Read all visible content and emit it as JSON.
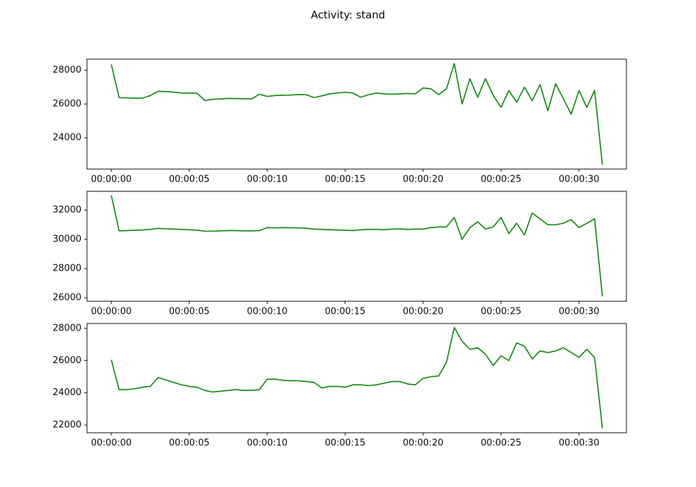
{
  "title": "Activity: stand",
  "chart_data": [
    {
      "type": "line",
      "x": [
        0,
        0.5,
        1,
        1.5,
        2,
        2.5,
        3,
        3.5,
        4,
        4.5,
        5,
        5.5,
        6,
        6.5,
        7,
        7.5,
        8,
        8.5,
        9,
        9.5,
        10,
        10.5,
        11,
        11.5,
        12,
        12.5,
        13,
        13.5,
        14,
        14.5,
        15,
        15.5,
        16,
        16.5,
        17,
        17.5,
        18,
        18.5,
        19,
        19.5,
        20,
        20.5,
        21,
        21.5,
        22,
        22.5,
        23,
        23.5,
        24,
        24.5,
        25,
        25.5,
        26,
        26.5,
        27,
        27.5,
        28,
        28.5,
        29,
        29.5,
        30,
        30.5,
        31,
        31.5
      ],
      "series": [
        {
          "color": "#008000",
          "values": [
            28350,
            26380,
            26360,
            26340,
            26350,
            26500,
            26750,
            26740,
            26700,
            26650,
            26640,
            26640,
            26200,
            26280,
            26300,
            26330,
            26320,
            26310,
            26300,
            26580,
            26450,
            26500,
            26520,
            26530,
            26560,
            26550,
            26380,
            26480,
            26600,
            26650,
            26700,
            26650,
            26400,
            26550,
            26650,
            26600,
            26580,
            26600,
            26620,
            26600,
            26950,
            26900,
            26550,
            26900,
            28400,
            26000,
            27500,
            26400,
            27500,
            26500,
            25800,
            26800,
            26100,
            27000,
            26200,
            27150,
            25600,
            27200,
            26300,
            25400,
            26800,
            25800,
            26800,
            22400
          ]
        }
      ],
      "xlim": [
        -1.56,
        33.04
      ],
      "ylim": [
        22140,
        28660
      ],
      "xticks": [
        {
          "value": 0,
          "label": "00:00:00"
        },
        {
          "value": 5,
          "label": "00:00:05"
        },
        {
          "value": 10,
          "label": "00:00:10"
        },
        {
          "value": 15,
          "label": "00:00:15"
        },
        {
          "value": 20,
          "label": "00:00:20"
        },
        {
          "value": 25,
          "label": "00:00:25"
        },
        {
          "value": 30,
          "label": "00:00:30"
        }
      ],
      "yticks": [
        24000,
        26000,
        28000
      ]
    },
    {
      "type": "line",
      "x": [
        0,
        0.5,
        1,
        1.5,
        2,
        2.5,
        3,
        3.5,
        4,
        4.5,
        5,
        5.5,
        6,
        6.5,
        7,
        7.5,
        8,
        8.5,
        9,
        9.5,
        10,
        10.5,
        11,
        11.5,
        12,
        12.5,
        13,
        13.5,
        14,
        14.5,
        15,
        15.5,
        16,
        16.5,
        17,
        17.5,
        18,
        18.5,
        19,
        19.5,
        20,
        20.5,
        21,
        21.5,
        22,
        22.5,
        23,
        23.5,
        24,
        24.5,
        25,
        25.5,
        26,
        26.5,
        27,
        27.5,
        28,
        28.5,
        29,
        29.5,
        30,
        30.5,
        31,
        31.5
      ],
      "series": [
        {
          "color": "#008000",
          "values": [
            33000,
            30580,
            30600,
            30620,
            30640,
            30680,
            30750,
            30720,
            30700,
            30680,
            30650,
            30620,
            30560,
            30560,
            30580,
            30600,
            30600,
            30580,
            30580,
            30600,
            30800,
            30780,
            30800,
            30790,
            30780,
            30760,
            30700,
            30680,
            30660,
            30640,
            30620,
            30600,
            30650,
            30680,
            30680,
            30660,
            30700,
            30720,
            30680,
            30700,
            30700,
            30800,
            30850,
            30850,
            31500,
            30000,
            30800,
            31200,
            30700,
            30850,
            31500,
            30400,
            31100,
            30300,
            31800,
            31400,
            31000,
            31000,
            31100,
            31350,
            30800,
            31100,
            31400,
            26100
          ]
        }
      ],
      "xlim": [
        -1.56,
        33.04
      ],
      "ylim": [
        25762,
        33286
      ],
      "xticks": [
        {
          "value": 0,
          "label": "00:00:00"
        },
        {
          "value": 5,
          "label": "00:00:05"
        },
        {
          "value": 10,
          "label": "00:00:10"
        },
        {
          "value": 15,
          "label": "00:00:15"
        },
        {
          "value": 20,
          "label": "00:00:20"
        },
        {
          "value": 25,
          "label": "00:00:25"
        },
        {
          "value": 30,
          "label": "00:00:30"
        }
      ],
      "yticks": [
        26000,
        28000,
        30000,
        32000
      ]
    },
    {
      "type": "line",
      "x": [
        0,
        0.5,
        1,
        1.5,
        2,
        2.5,
        3,
        3.5,
        4,
        4.5,
        5,
        5.5,
        6,
        6.5,
        7,
        7.5,
        8,
        8.5,
        9,
        9.5,
        10,
        10.5,
        11,
        11.5,
        12,
        12.5,
        13,
        13.5,
        14,
        14.5,
        15,
        15.5,
        16,
        16.5,
        17,
        17.5,
        18,
        18.5,
        19,
        19.5,
        20,
        20.5,
        21,
        21.5,
        22,
        22.5,
        23,
        23.5,
        24,
        24.5,
        25,
        25.5,
        26,
        26.5,
        27,
        27.5,
        28,
        28.5,
        29,
        29.5,
        30,
        30.5,
        31,
        31.5
      ],
      "series": [
        {
          "color": "#008000",
          "values": [
            26050,
            24200,
            24200,
            24250,
            24350,
            24400,
            24950,
            24800,
            24650,
            24500,
            24400,
            24350,
            24150,
            24050,
            24100,
            24150,
            24200,
            24150,
            24150,
            24200,
            24850,
            24850,
            24780,
            24750,
            24750,
            24700,
            24650,
            24300,
            24400,
            24400,
            24350,
            24500,
            24500,
            24450,
            24500,
            24600,
            24700,
            24700,
            24550,
            24500,
            24900,
            25000,
            25050,
            25900,
            28050,
            27200,
            26700,
            26800,
            26400,
            25700,
            26300,
            26000,
            27100,
            26900,
            26100,
            26600,
            26500,
            26600,
            26800,
            26500,
            26200,
            26700,
            26200,
            21800
          ]
        }
      ],
      "xlim": [
        -1.56,
        33.04
      ],
      "ylim": [
        21525,
        28302
      ],
      "xticks": [
        {
          "value": 0,
          "label": "00:00:00"
        },
        {
          "value": 5,
          "label": "00:00:05"
        },
        {
          "value": 10,
          "label": "00:00:10"
        },
        {
          "value": 15,
          "label": "00:00:15"
        },
        {
          "value": 20,
          "label": "00:00:20"
        },
        {
          "value": 25,
          "label": "00:00:25"
        },
        {
          "value": 30,
          "label": "00:00:30"
        }
      ],
      "yticks": [
        22000,
        24000,
        26000,
        28000
      ]
    }
  ]
}
